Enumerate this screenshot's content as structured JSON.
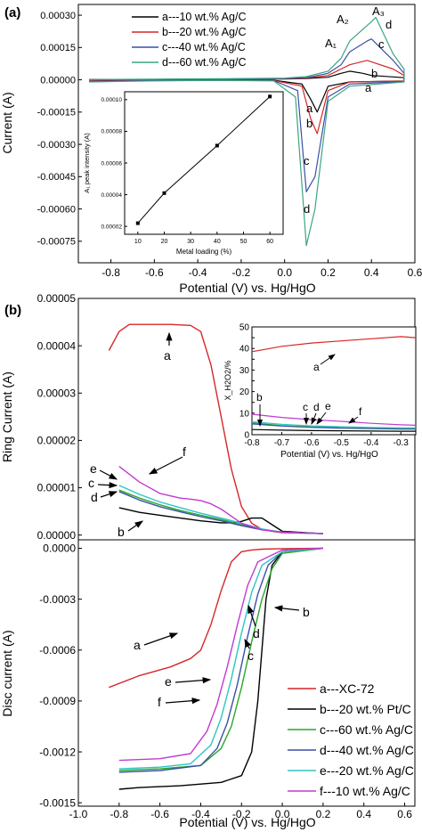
{
  "chart_data": [
    {
      "type": "line",
      "panel_label": "(a)",
      "xlabel": "Potential (V) vs. Hg/HgO",
      "ylabel": "Current (A)",
      "xlim": [
        -0.95,
        0.6
      ],
      "ylim": [
        -0.00085,
        0.00035
      ],
      "xticks": [
        -0.8,
        -0.6,
        -0.4,
        -0.2,
        0.0,
        0.2,
        0.4,
        0.6
      ],
      "xtick_labels": [
        "-0.8",
        "-0.6",
        "-0.4",
        "-0.2",
        "0.0",
        "0.2",
        "0.4",
        "0.6"
      ],
      "yticks": [
        0.0003,
        0.00015,
        0.0,
        -0.00015,
        -0.0003,
        -0.00045,
        -0.0006,
        -0.00075
      ],
      "ytick_labels": [
        "0.00030",
        "0.00015",
        "0.00000",
        "-0.00015",
        "-0.00030",
        "-0.00045",
        "-0.00060",
        "-0.00075"
      ],
      "legend_position": "top-right",
      "series": [
        {
          "name": "a---10 wt.% Ag/C",
          "color": "#000000",
          "curve_label": "a",
          "x": [
            -0.9,
            -0.6,
            -0.3,
            -0.05,
            0.08,
            0.12,
            0.15,
            0.2,
            0.3,
            0.55,
            0.55,
            0.4,
            0.36,
            0.3,
            0.26,
            0.2,
            0.1,
            0.0,
            -0.3,
            -0.6,
            -0.9
          ],
          "y": [
            -5e-06,
            -2e-06,
            -1e-06,
            -2e-06,
            -2e-05,
            -9e-05,
            -0.00015,
            -3e-05,
            -1e-05,
            -5e-06,
            1e-05,
            2e-05,
            3e-05,
            4e-05,
            3e-05,
            1.2e-05,
            6e-06,
            4e-06,
            3e-06,
            2e-06,
            1e-06
          ]
        },
        {
          "name": "b---20 wt.% Ag/C",
          "color": "#d62728",
          "curve_label": "b",
          "x": [
            -0.9,
            -0.6,
            -0.3,
            -0.05,
            0.08,
            0.12,
            0.15,
            0.2,
            0.3,
            0.55,
            0.55,
            0.5,
            0.38,
            0.3,
            0.26,
            0.2,
            0.1,
            0.0,
            -0.3,
            -0.6,
            -0.9
          ],
          "y": [
            -6e-06,
            -3e-06,
            -2e-06,
            -3e-06,
            -3e-05,
            -0.00018,
            -0.00025,
            -5e-05,
            -1e-05,
            -6e-06,
            2e-05,
            5e-05,
            9e-05,
            7e-05,
            5e-05,
            2e-05,
            8e-06,
            5e-06,
            3e-06,
            2e-06,
            1e-06
          ]
        },
        {
          "name": "c---40 wt.% Ag/C",
          "color": "#3c4fa8",
          "curve_label": "c",
          "x": [
            -0.9,
            -0.6,
            -0.3,
            -0.05,
            0.06,
            0.1,
            0.14,
            0.2,
            0.3,
            0.55,
            0.55,
            0.5,
            0.4,
            0.38,
            0.3,
            0.26,
            0.2,
            0.1,
            0.0,
            -0.3,
            -0.6,
            -0.9
          ],
          "y": [
            -8e-06,
            -4e-06,
            -2e-06,
            -4e-06,
            -5e-05,
            -0.00052,
            -0.00045,
            -8e-05,
            -2e-05,
            -8e-06,
            3e-05,
            9e-05,
            0.00019,
            0.00018,
            0.00013,
            7e-05,
            3e-05,
            1e-05,
            6e-06,
            4e-06,
            2e-06,
            1e-06
          ]
        },
        {
          "name": "d---60 wt.% Ag/C",
          "color": "#3aa680",
          "curve_label": "d",
          "x": [
            -0.9,
            -0.6,
            -0.3,
            -0.05,
            0.05,
            0.1,
            0.14,
            0.2,
            0.3,
            0.55,
            0.55,
            0.5,
            0.42,
            0.4,
            0.3,
            0.26,
            0.2,
            0.1,
            0.0,
            -0.3,
            -0.6,
            -0.9
          ],
          "y": [
            -1e-05,
            -5e-06,
            -3e-06,
            -5e-06,
            -8e-05,
            -0.00077,
            -0.0006,
            -0.0001,
            -3e-05,
            -1e-05,
            5e-05,
            0.00012,
            0.00029,
            0.00027,
            0.00018,
            0.0001,
            4e-05,
            1.5e-05,
            8e-06,
            5e-06,
            3e-06,
            1e-06
          ]
        }
      ],
      "peak_labels": [
        "A₁",
        "A₂",
        "A₃"
      ],
      "inset": {
        "type": "line",
        "xlabel": "Metal loading (%)",
        "ylabel": "A₁ peak intensity (A)",
        "xlim": [
          5,
          65
        ],
        "ylim": [
          1.5e-05,
          0.000105
        ],
        "xticks": [
          10,
          20,
          30,
          40,
          50,
          60
        ],
        "xtick_labels": [
          "10",
          "20",
          "30",
          "40",
          "50",
          "60"
        ],
        "yticks": [
          2e-05,
          4e-05,
          6e-05,
          8e-05,
          0.0001
        ],
        "ytick_labels": [
          "0.00002",
          "0.00004",
          "0.00006",
          "0.00008",
          "0.00010"
        ],
        "x": [
          10,
          20,
          40,
          60
        ],
        "y": [
          2.2e-05,
          4.1e-05,
          7.1e-05,
          0.000102
        ]
      }
    },
    {
      "type": "line",
      "panel_label": "(b)",
      "ylabel": "Ring Current (A)",
      "xlim": [
        -1.0,
        0.65
      ],
      "ylim": [
        -1e-06,
        5e-05
      ],
      "yticks": [
        0.0,
        1e-05,
        2e-05,
        3e-05,
        4e-05,
        5e-05
      ],
      "ytick_labels": [
        "0.00000",
        "0.00001",
        "0.00002",
        "0.00003",
        "0.00004",
        "0.00005"
      ],
      "series": [
        {
          "name": "a",
          "color": "#d62728",
          "curve_label": "a",
          "x": [
            -0.85,
            -0.8,
            -0.75,
            -0.65,
            -0.55,
            -0.45,
            -0.4,
            -0.35,
            -0.3,
            -0.25,
            -0.2,
            -0.15,
            -0.1,
            -0.05,
            0.0,
            0.2
          ],
          "y": [
            3.9e-05,
            4.3e-05,
            4.45e-05,
            4.45e-05,
            4.45e-05,
            4.43e-05,
            4.3e-05,
            3.6e-05,
            2.5e-05,
            1.4e-05,
            6e-06,
            2.5e-06,
            1.2e-06,
            8e-07,
            5e-07,
            3e-07
          ]
        },
        {
          "name": "b",
          "color": "#000000",
          "curve_label": "b",
          "x": [
            -0.8,
            -0.7,
            -0.6,
            -0.5,
            -0.4,
            -0.3,
            -0.25,
            -0.2,
            -0.15,
            -0.1,
            -0.05,
            0.0,
            0.2
          ],
          "y": [
            5.8e-06,
            4.8e-06,
            4.2e-06,
            3.6e-06,
            3e-06,
            2.6e-06,
            2.6e-06,
            2.9e-06,
            3.6e-06,
            3.6e-06,
            2.2e-06,
            8e-07,
            3e-07
          ]
        },
        {
          "name": "c",
          "color": "#28a828",
          "curve_label": "c",
          "x": [
            -0.8,
            -0.7,
            -0.6,
            -0.5,
            -0.4,
            -0.3,
            -0.2,
            -0.1,
            0.0,
            0.2
          ],
          "y": [
            9.5e-06,
            7.8e-06,
            6.4e-06,
            5.2e-06,
            4.2e-06,
            3.3e-06,
            2.2e-06,
            1.2e-06,
            6e-07,
            3e-07
          ]
        },
        {
          "name": "d",
          "color": "#3c4fa8",
          "curve_label": "d",
          "x": [
            -0.8,
            -0.7,
            -0.6,
            -0.5,
            -0.4,
            -0.3,
            -0.2,
            -0.1,
            0.0,
            0.2
          ],
          "y": [
            9.2e-06,
            7.4e-06,
            6e-06,
            4.9e-06,
            3.9e-06,
            3e-06,
            2e-06,
            1.1e-06,
            6e-07,
            3e-07
          ]
        },
        {
          "name": "e",
          "color": "#2ec4c4",
          "curve_label": "e",
          "x": [
            -0.8,
            -0.7,
            -0.6,
            -0.5,
            -0.4,
            -0.3,
            -0.2,
            -0.1,
            0.0,
            0.2
          ],
          "y": [
            1.05e-05,
            8.6e-06,
            7e-06,
            5.8e-06,
            4.6e-06,
            3.6e-06,
            2.5e-06,
            1.3e-06,
            6e-07,
            3e-07
          ]
        },
        {
          "name": "f",
          "color": "#c23ad0",
          "curve_label": "f",
          "x": [
            -0.8,
            -0.7,
            -0.6,
            -0.5,
            -0.45,
            -0.4,
            -0.35,
            -0.3,
            -0.25,
            -0.2,
            -0.1,
            0.0,
            0.2
          ],
          "y": [
            1.45e-05,
            1.12e-05,
            8.8e-06,
            7.8e-06,
            7.6e-06,
            7.3e-06,
            6.6e-06,
            5.5e-06,
            4e-06,
            2.5e-06,
            1.1e-06,
            6e-07,
            3e-07
          ]
        }
      ],
      "inset": {
        "type": "line",
        "xlabel": "Potential (V) vs. Hg/HgO",
        "ylabel": "X_H2O2/%",
        "xlim": [
          -0.8,
          -0.25
        ],
        "ylim": [
          0,
          50
        ],
        "xticks": [
          -0.8,
          -0.7,
          -0.6,
          -0.5,
          -0.4,
          -0.3
        ],
        "xtick_labels": [
          "-0.8",
          "-0.7",
          "-0.6",
          "-0.5",
          "-0.4",
          "-0.3"
        ],
        "yticks": [
          0,
          5,
          10,
          15,
          20,
          25,
          30,
          35,
          40,
          45,
          50
        ],
        "ytick_labels": [
          "0",
          "5",
          "10",
          "15",
          "20",
          "25",
          "30",
          "35",
          "40",
          "45",
          "50"
        ],
        "series": [
          {
            "name": "a",
            "color": "#d62728",
            "curve_label": "a",
            "x": [
              -0.8,
              -0.7,
              -0.6,
              -0.5,
              -0.4,
              -0.3,
              -0.25
            ],
            "y": [
              38.5,
              41,
              42.5,
              43.5,
              44.5,
              45.5,
              45
            ]
          },
          {
            "name": "b",
            "color": "#000000",
            "curve_label": "b",
            "x": [
              -0.8,
              -0.7,
              -0.6,
              -0.5,
              -0.4,
              -0.3,
              -0.25
            ],
            "y": [
              2.4,
              2.1,
              1.9,
              1.8,
              1.7,
              1.6,
              1.6
            ]
          },
          {
            "name": "c",
            "color": "#28a828",
            "curve_label": "c",
            "x": [
              -0.8,
              -0.7,
              -0.6,
              -0.5,
              -0.4,
              -0.3,
              -0.25
            ],
            "y": [
              5.5,
              4.2,
              3.6,
              3.2,
              3.0,
              2.8,
              2.8
            ]
          },
          {
            "name": "d",
            "color": "#3c4fa8",
            "curve_label": "d",
            "x": [
              -0.8,
              -0.7,
              -0.6,
              -0.5,
              -0.4,
              -0.3,
              -0.25
            ],
            "y": [
              5.0,
              4.0,
              3.4,
              3.0,
              2.8,
              2.6,
              2.6
            ]
          },
          {
            "name": "e",
            "color": "#2ec4c4",
            "curve_label": "e",
            "x": [
              -0.8,
              -0.7,
              -0.6,
              -0.5,
              -0.4,
              -0.3,
              -0.25
            ],
            "y": [
              6.0,
              4.8,
              4.1,
              3.7,
              3.4,
              3.2,
              3.2
            ]
          },
          {
            "name": "f",
            "color": "#c23ad0",
            "curve_label": "f",
            "x": [
              -0.8,
              -0.7,
              -0.6,
              -0.5,
              -0.4,
              -0.3,
              -0.25
            ],
            "y": [
              9.5,
              8.0,
              7.0,
              6.2,
              5.3,
              4.6,
              4.4
            ]
          }
        ]
      }
    },
    {
      "type": "line",
      "xlabel": "Potential (V) vs. Hg/HgO",
      "ylabel": "Disc current (A)",
      "xlim": [
        -1.0,
        0.65
      ],
      "ylim": [
        -0.00152,
        5e-05
      ],
      "xticks": [
        -1.0,
        -0.8,
        -0.6,
        -0.4,
        -0.2,
        0.0,
        0.2,
        0.4,
        0.6
      ],
      "xtick_labels": [
        "-1.0",
        "-0.8",
        "-0.6",
        "-0.4",
        "-0.2",
        "0.0",
        "0.2",
        "0.4",
        "0.6"
      ],
      "yticks": [
        0.0,
        -0.0003,
        -0.0006,
        -0.0009,
        -0.0012,
        -0.0015
      ],
      "ytick_labels": [
        "0.0000",
        "-0.0003",
        "-0.0006",
        "-0.0009",
        "-0.0012",
        "-0.0015"
      ],
      "legend_position": "bottom-right",
      "series": [
        {
          "name": "a---XC-72",
          "color": "#d62728",
          "curve_label": "a",
          "x": [
            -0.85,
            -0.7,
            -0.55,
            -0.45,
            -0.4,
            -0.35,
            -0.3,
            -0.25,
            -0.2,
            -0.15,
            -0.1,
            0.0,
            0.2
          ],
          "y": [
            -0.00082,
            -0.00075,
            -0.0007,
            -0.00065,
            -0.0006,
            -0.00045,
            -0.00025,
            -8e-05,
            -2e-05,
            -1e-05,
            -5e-06,
            -2e-06,
            0.0
          ]
        },
        {
          "name": "b---20 wt.% Pt/C",
          "color": "#000000",
          "curve_label": "b",
          "x": [
            -0.8,
            -0.7,
            -0.5,
            -0.3,
            -0.2,
            -0.15,
            -0.12,
            -0.1,
            -0.08,
            -0.05,
            0.0,
            0.2
          ],
          "y": [
            -0.00142,
            -0.00141,
            -0.0014,
            -0.00138,
            -0.00134,
            -0.0012,
            -0.0009,
            -0.0006,
            -0.0003,
            -0.0001,
            -2e-05,
            0.0
          ]
        },
        {
          "name": "c---60 wt.% Ag/C",
          "color": "#28a828",
          "curve_label": "c",
          "x": [
            -0.8,
            -0.6,
            -0.4,
            -0.3,
            -0.25,
            -0.2,
            -0.15,
            -0.1,
            -0.05,
            0.0,
            0.2
          ],
          "y": [
            -0.00131,
            -0.0013,
            -0.00128,
            -0.00118,
            -0.00105,
            -0.00082,
            -0.00055,
            -0.0003,
            -0.00012,
            -3e-05,
            0.0
          ]
        },
        {
          "name": "d---40 wt.% Ag/C",
          "color": "#3c4fa8",
          "curve_label": "d",
          "x": [
            -0.8,
            -0.6,
            -0.4,
            -0.32,
            -0.27,
            -0.22,
            -0.17,
            -0.12,
            -0.07,
            0.0,
            0.2
          ],
          "y": [
            -0.00132,
            -0.00131,
            -0.00128,
            -0.00118,
            -0.00103,
            -0.0008,
            -0.00052,
            -0.00027,
            -0.0001,
            -2e-05,
            0.0
          ]
        },
        {
          "name": "e---20 wt.% Ag/C",
          "color": "#2ec4c4",
          "curve_label": "e",
          "x": [
            -0.8,
            -0.6,
            -0.45,
            -0.35,
            -0.3,
            -0.25,
            -0.2,
            -0.15,
            -0.1,
            0.0,
            0.2
          ],
          "y": [
            -0.0013,
            -0.00129,
            -0.00127,
            -0.00116,
            -0.001,
            -0.00077,
            -0.0005,
            -0.00026,
            -0.0001,
            -2e-05,
            0.0
          ]
        },
        {
          "name": "f---10 wt.% Ag/C",
          "color": "#c23ad0",
          "curve_label": "f",
          "x": [
            -0.8,
            -0.6,
            -0.45,
            -0.37,
            -0.32,
            -0.27,
            -0.22,
            -0.17,
            -0.12,
            0.0,
            0.2
          ],
          "y": [
            -0.00125,
            -0.00124,
            -0.00121,
            -0.00108,
            -0.00092,
            -0.0007,
            -0.00045,
            -0.00022,
            -8e-05,
            -1e-05,
            0.0
          ]
        }
      ]
    }
  ]
}
